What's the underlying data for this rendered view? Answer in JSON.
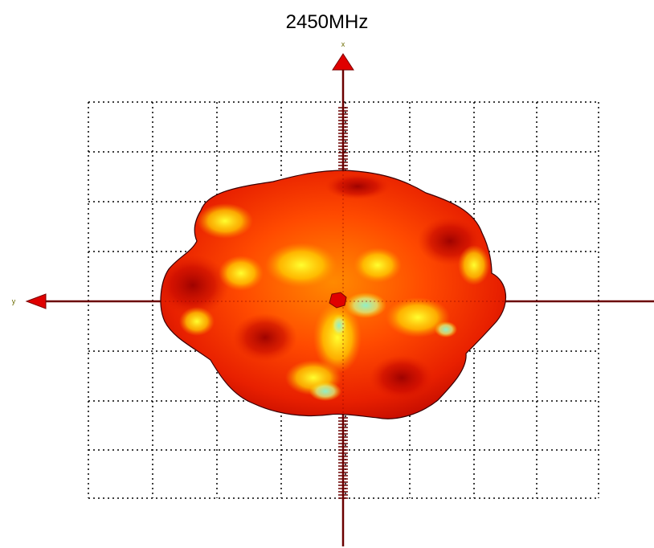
{
  "title": "2450MHz",
  "axes": {
    "vertical_label": "x",
    "horizontal_label": "y",
    "axis_color": "#6b0000",
    "arrow_color": "#e00000"
  },
  "pattern": {
    "colors": {
      "outline": "#3a0000",
      "deep": "#a80000",
      "red": "#e81e00",
      "orange": "#ff6a00",
      "amber": "#ffb000",
      "yellow": "#ffee00",
      "cyan": "#7fe6b0"
    }
  },
  "grid": {
    "style": "dotted",
    "line_color": "#000000"
  }
}
